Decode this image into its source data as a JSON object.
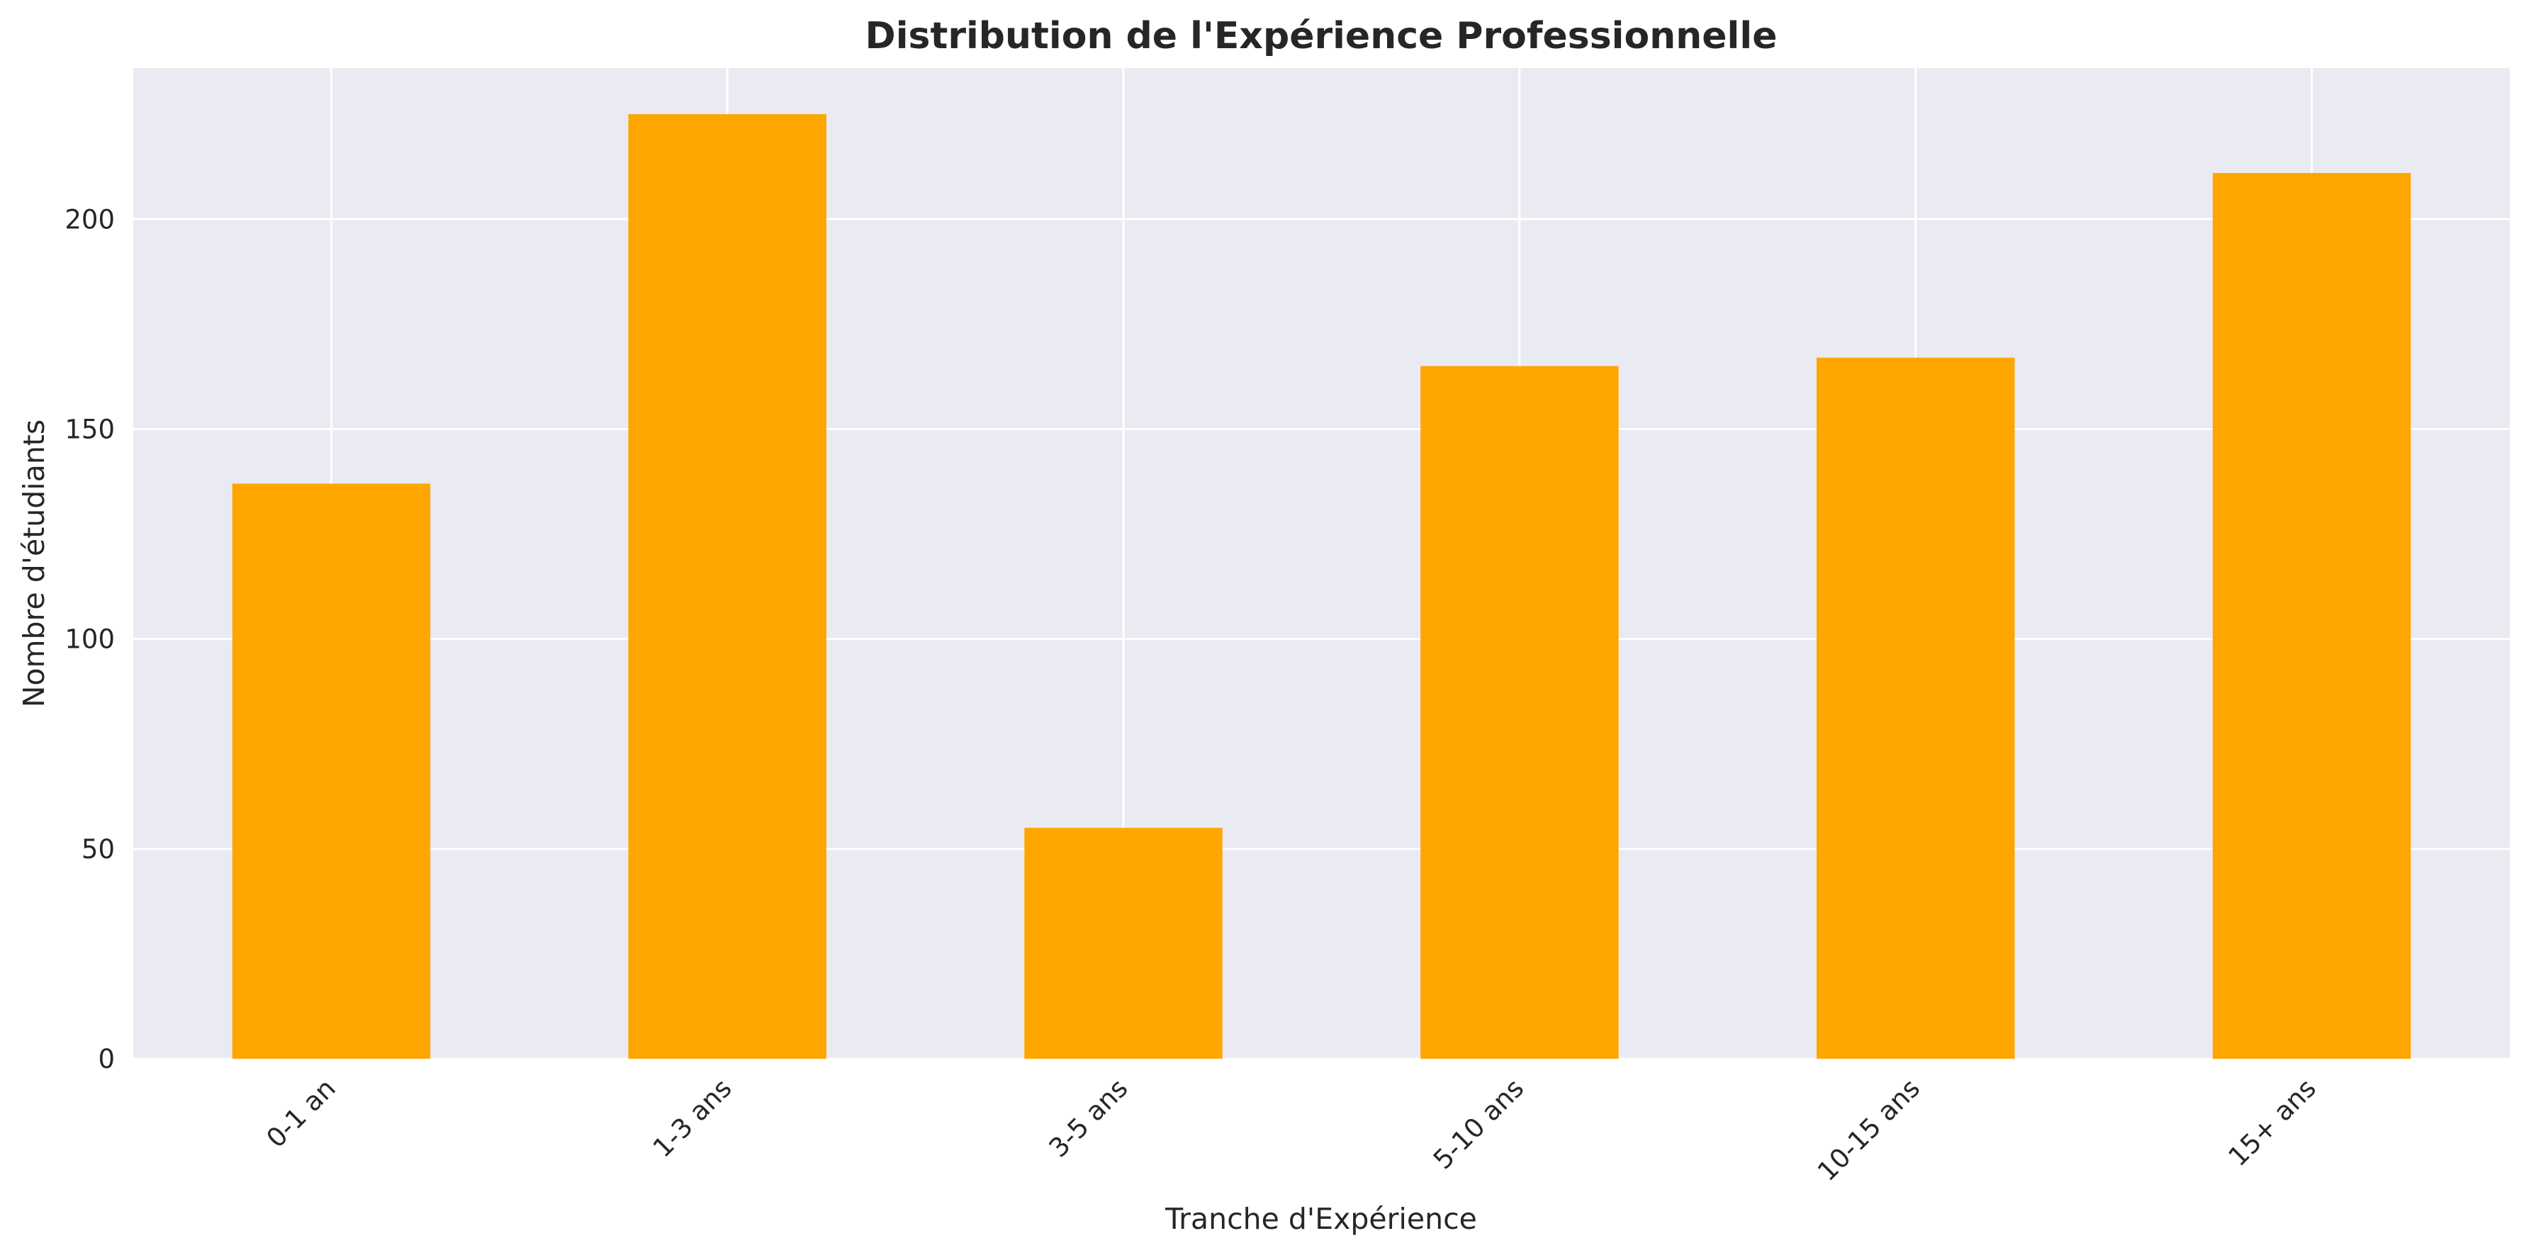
{
  "chart_data": {
    "type": "bar",
    "title": "Distribution de l'Expérience Professionnelle",
    "xlabel": "Tranche d'Expérience",
    "ylabel": "Nombre d'étudiants",
    "categories": [
      "0-1 an",
      "1-3 ans",
      "3-5 ans",
      "5-10 ans",
      "10-15 ans",
      "15+ ans"
    ],
    "values": [
      137,
      225,
      55,
      165,
      167,
      211
    ],
    "ylim": [
      0,
      236
    ],
    "yticks": [
      0,
      50,
      100,
      150,
      200
    ],
    "grid": true,
    "colors": {
      "bar": "#FFA500",
      "plot_background": "#EAEAF2",
      "grid": "#FFFFFF"
    }
  }
}
